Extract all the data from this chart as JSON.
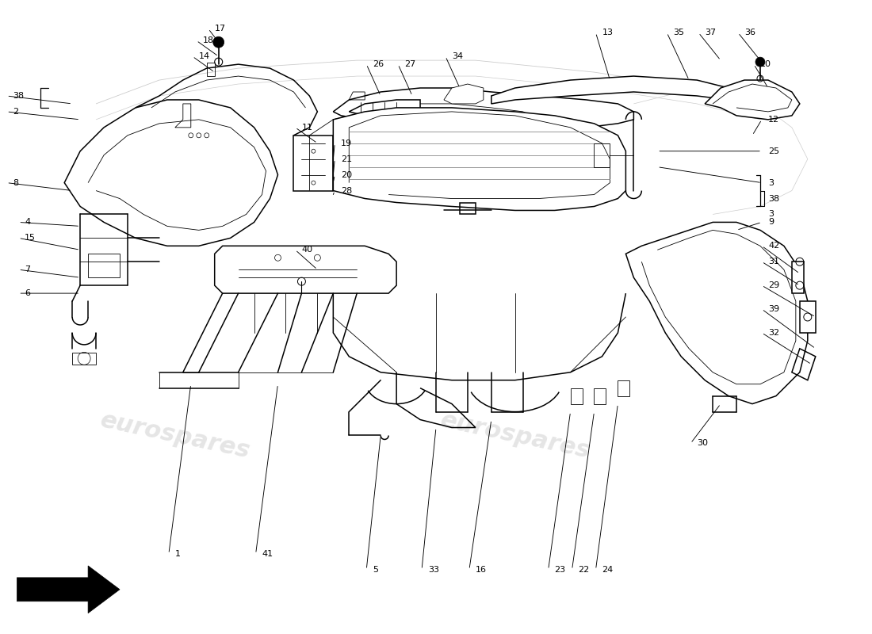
{
  "bg_color": "#ffffff",
  "line_color": "#000000",
  "text_color": "#000000",
  "watermark_text": "eurospares",
  "fig_width": 11.0,
  "fig_height": 8.0,
  "dpi": 100,
  "lw_main": 1.1,
  "lw_thin": 0.6,
  "lw_med": 0.85,
  "label_fontsize": 8.0
}
